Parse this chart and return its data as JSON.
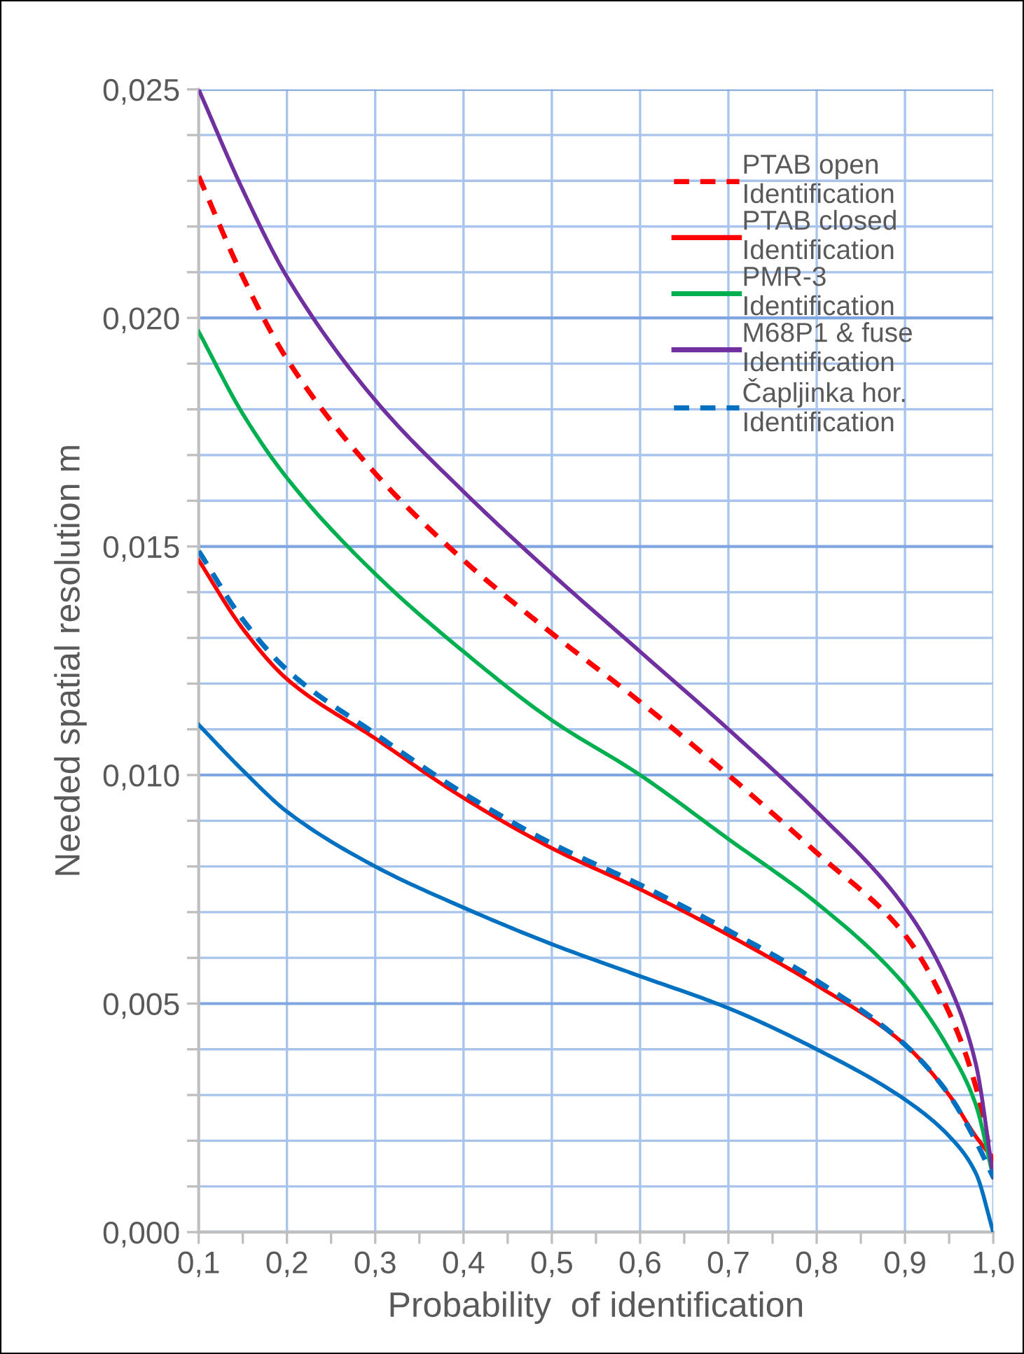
{
  "chart_data": {
    "type": "line",
    "xlabel": "Probability  of identification",
    "ylabel": "Needed spatial resolution m",
    "x": [
      0.1,
      0.15,
      0.2,
      0.3,
      0.4,
      0.5,
      0.6,
      0.7,
      0.8,
      0.9,
      0.95,
      0.98,
      1.0
    ],
    "series": [
      {
        "name": "PTAB open\nIdentification",
        "color": "#ff0000",
        "line_style": "dashed",
        "values": [
          0.0231,
          0.0209,
          0.0191,
          0.0166,
          0.0147,
          0.0131,
          0.0116,
          0.01,
          0.0083,
          0.0065,
          0.0048,
          0.0032,
          0.0014
        ]
      },
      {
        "name": "PTAB closed\nIdentification",
        "color": "#ff0000",
        "line_style": "solid",
        "values": [
          0.0147,
          0.0132,
          0.0121,
          0.0108,
          0.0095,
          0.0084,
          0.0075,
          0.0065,
          0.0054,
          0.0041,
          0.003,
          0.0021,
          0.0016
        ]
      },
      {
        "name": "PMR-3\nIdentification",
        "color": "#00b050",
        "line_style": "solid",
        "values": [
          0.0197,
          0.0179,
          0.0165,
          0.0144,
          0.0127,
          0.0112,
          0.01,
          0.0086,
          0.0072,
          0.0054,
          0.004,
          0.0028,
          0.0012
        ]
      },
      {
        "name": "M68P1 & fuse\nIdentification",
        "color": "#7030a0",
        "line_style": "solid",
        "values": [
          0.025,
          0.0228,
          0.0209,
          0.0182,
          0.0162,
          0.0144,
          0.0127,
          0.011,
          0.0092,
          0.0071,
          0.0054,
          0.0037,
          0.0012
        ]
      },
      {
        "name": "Čapljinka hor.\nIdentification",
        "color": "#0070c0",
        "line_style": "dashed",
        "values": [
          0.0149,
          0.0134,
          0.0123,
          0.0109,
          0.0096,
          0.0085,
          0.0076,
          0.0066,
          0.0055,
          0.0041,
          0.003,
          0.002,
          0.0012
        ]
      },
      {
        "color": "#0070c0",
        "line_style": "solid",
        "values": [
          0.0111,
          0.0101,
          0.0092,
          0.008,
          0.0071,
          0.0063,
          0.0056,
          0.0049,
          0.004,
          0.0029,
          0.0021,
          0.0013,
          0.0
        ]
      }
    ],
    "xlim": [
      0.1,
      1.0
    ],
    "xticks": [
      {
        "value": 0.1,
        "label": "0,1"
      },
      {
        "value": 0.15,
        "label": null
      },
      {
        "value": 0.2,
        "label": "0,2"
      },
      {
        "value": 0.25,
        "label": null
      },
      {
        "value": 0.3,
        "label": "0,3"
      },
      {
        "value": 0.35,
        "label": null
      },
      {
        "value": 0.4,
        "label": "0,4"
      },
      {
        "value": 0.45,
        "label": null
      },
      {
        "value": 0.5,
        "label": "0,5"
      },
      {
        "value": 0.55,
        "label": null
      },
      {
        "value": 0.6,
        "label": "0,6"
      },
      {
        "value": 0.65,
        "label": null
      },
      {
        "value": 0.7,
        "label": "0,7"
      },
      {
        "value": 0.75,
        "label": null
      },
      {
        "value": 0.8,
        "label": "0,8"
      },
      {
        "value": 0.85,
        "label": null
      },
      {
        "value": 0.9,
        "label": "0,9"
      },
      {
        "value": 0.95,
        "label": null
      },
      {
        "value": 1.0,
        "label": "1,0"
      }
    ],
    "ylim": [
      0,
      0.025
    ],
    "yticks": [
      {
        "value": 0,
        "label": "0,000"
      },
      {
        "value": 0.001,
        "label": null
      },
      {
        "value": 0.002,
        "label": null
      },
      {
        "value": 0.003,
        "label": null
      },
      {
        "value": 0.004,
        "label": null
      },
      {
        "value": 0.005,
        "label": "0,005"
      },
      {
        "value": 0.006,
        "label": null
      },
      {
        "value": 0.007,
        "label": null
      },
      {
        "value": 0.008,
        "label": null
      },
      {
        "value": 0.009,
        "label": null
      },
      {
        "value": 0.01,
        "label": "0,010"
      },
      {
        "value": 0.011,
        "label": null
      },
      {
        "value": 0.012,
        "label": null
      },
      {
        "value": 0.013,
        "label": null
      },
      {
        "value": 0.014,
        "label": null
      },
      {
        "value": 0.015,
        "label": "0,015"
      },
      {
        "value": 0.016,
        "label": null
      },
      {
        "value": 0.017,
        "label": null
      },
      {
        "value": 0.018,
        "label": null
      },
      {
        "value": 0.019,
        "label": null
      },
      {
        "value": 0.02,
        "label": "0,020"
      },
      {
        "value": 0.021,
        "label": null
      },
      {
        "value": 0.022,
        "label": null
      },
      {
        "value": 0.023,
        "label": null
      },
      {
        "value": 0.024,
        "label": null
      },
      {
        "value": 0.025,
        "label": "0,025"
      }
    ],
    "grid": true,
    "legend": "top right",
    "marker": "none"
  }
}
